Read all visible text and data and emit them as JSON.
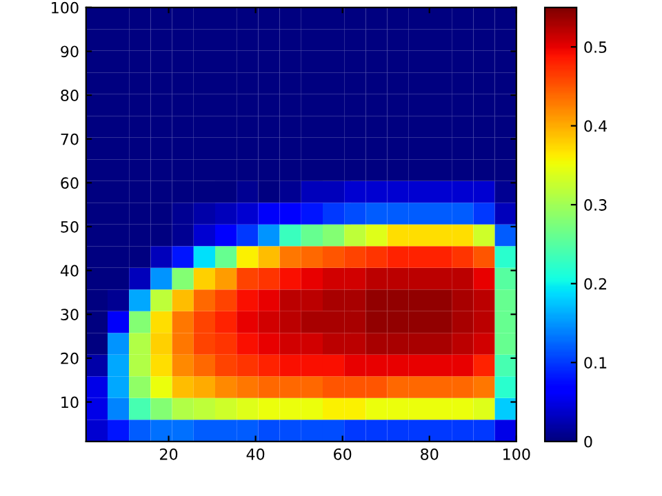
{
  "chart_data": {
    "type": "heatmap",
    "xlim": [
      1,
      100
    ],
    "ylim": [
      1,
      100
    ],
    "xticks": [
      20,
      40,
      60,
      80,
      100
    ],
    "yticks": [
      10,
      20,
      30,
      40,
      50,
      60,
      70,
      80,
      90,
      100
    ],
    "clim": [
      0,
      0.55
    ],
    "cticks": [
      0,
      0.1,
      0.2,
      0.3,
      0.4,
      0.5
    ],
    "cells": [
      [
        0,
        0,
        0,
        0,
        0,
        0,
        0,
        0,
        0,
        0,
        0,
        0,
        0,
        0,
        0,
        0,
        0,
        0,
        0,
        0
      ],
      [
        0,
        0,
        0,
        0,
        0,
        0,
        0,
        0,
        0,
        0,
        0,
        0,
        0,
        0,
        0,
        0,
        0,
        0,
        0,
        0
      ],
      [
        0,
        0,
        0,
        0,
        0,
        0,
        0,
        0,
        0,
        0,
        0,
        0,
        0,
        0,
        0,
        0,
        0,
        0,
        0,
        0
      ],
      [
        0,
        0,
        0,
        0,
        0,
        0,
        0,
        0,
        0,
        0,
        0,
        0,
        0,
        0,
        0,
        0,
        0,
        0,
        0,
        0
      ],
      [
        0,
        0,
        0,
        0,
        0,
        0,
        0,
        0,
        0,
        0,
        0,
        0,
        0,
        0,
        0,
        0,
        0,
        0,
        0,
        0
      ],
      [
        0,
        0,
        0,
        0,
        0,
        0,
        0,
        0,
        0,
        0,
        0,
        0,
        0,
        0,
        0,
        0,
        0,
        0,
        0,
        0
      ],
      [
        0,
        0,
        0,
        0,
        0,
        0,
        0,
        0,
        0,
        0,
        0,
        0,
        0,
        0,
        0,
        0,
        0,
        0,
        0,
        0
      ],
      [
        0,
        0,
        0,
        0,
        0,
        0,
        0,
        0,
        0,
        0,
        0,
        0,
        0,
        0,
        0,
        0,
        0,
        0,
        0,
        0
      ],
      [
        0,
        0,
        0,
        0,
        0,
        0,
        0,
        0.01,
        0,
        0.01,
        0.03,
        0.03,
        0.04,
        0.04,
        0.04,
        0.04,
        0.04,
        0.04,
        0.04,
        0.01
      ],
      [
        0,
        0,
        0,
        0,
        0.01,
        0.02,
        0.03,
        0.04,
        0.06,
        0.07,
        0.08,
        0.1,
        0.11,
        0.12,
        0.12,
        0.12,
        0.12,
        0.12,
        0.1,
        0.03
      ],
      [
        0,
        0,
        0,
        0,
        0.01,
        0.04,
        0.07,
        0.1,
        0.15,
        0.23,
        0.26,
        0.28,
        0.32,
        0.34,
        0.37,
        0.37,
        0.37,
        0.37,
        0.33,
        0.12
      ],
      [
        0,
        0,
        0,
        0.03,
        0.08,
        0.19,
        0.26,
        0.36,
        0.39,
        0.43,
        0.44,
        0.45,
        0.46,
        0.47,
        0.48,
        0.48,
        0.48,
        0.47,
        0.45,
        0.22
      ],
      [
        0,
        0,
        0.03,
        0.15,
        0.28,
        0.38,
        0.41,
        0.46,
        0.47,
        0.49,
        0.5,
        0.51,
        0.51,
        0.52,
        0.52,
        0.52,
        0.52,
        0.52,
        0.5,
        0.25
      ],
      [
        0,
        0.01,
        0.16,
        0.32,
        0.39,
        0.44,
        0.46,
        0.49,
        0.5,
        0.52,
        0.52,
        0.53,
        0.53,
        0.54,
        0.54,
        0.54,
        0.54,
        0.53,
        0.52,
        0.26
      ],
      [
        0,
        0.06,
        0.28,
        0.37,
        0.43,
        0.46,
        0.48,
        0.5,
        0.51,
        0.52,
        0.53,
        0.53,
        0.53,
        0.54,
        0.54,
        0.54,
        0.54,
        0.53,
        0.52,
        0.26
      ],
      [
        0,
        0.15,
        0.31,
        0.38,
        0.43,
        0.46,
        0.47,
        0.49,
        0.5,
        0.51,
        0.51,
        0.52,
        0.52,
        0.53,
        0.53,
        0.53,
        0.53,
        0.52,
        0.51,
        0.26
      ],
      [
        0.02,
        0.16,
        0.31,
        0.37,
        0.42,
        0.44,
        0.46,
        0.47,
        0.48,
        0.49,
        0.49,
        0.49,
        0.5,
        0.5,
        0.5,
        0.5,
        0.5,
        0.5,
        0.48,
        0.24
      ],
      [
        0.05,
        0.16,
        0.29,
        0.35,
        0.39,
        0.4,
        0.42,
        0.43,
        0.44,
        0.44,
        0.44,
        0.45,
        0.45,
        0.45,
        0.44,
        0.44,
        0.44,
        0.44,
        0.43,
        0.22
      ],
      [
        0.05,
        0.14,
        0.24,
        0.28,
        0.31,
        0.32,
        0.33,
        0.34,
        0.35,
        0.35,
        0.35,
        0.36,
        0.36,
        0.35,
        0.35,
        0.35,
        0.35,
        0.35,
        0.34,
        0.18
      ],
      [
        0.04,
        0.08,
        0.12,
        0.13,
        0.13,
        0.12,
        0.12,
        0.12,
        0.11,
        0.11,
        0.11,
        0.11,
        0.1,
        0.1,
        0.1,
        0.1,
        0.1,
        0.1,
        0.1,
        0.05
      ]
    ]
  }
}
